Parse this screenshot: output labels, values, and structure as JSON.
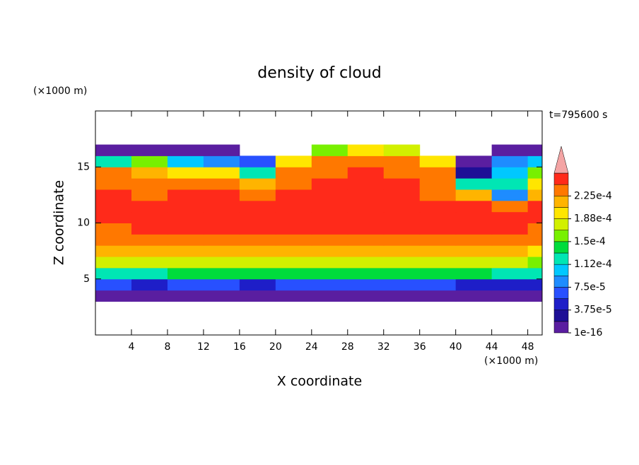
{
  "chart_data": {
    "type": "contourf",
    "title": "density of cloud",
    "x_label": "X coordinate",
    "y_label": "Z coordinate",
    "x_unit": "(×1000 m)",
    "y_unit": "(×1000 m)",
    "time_label": "t=795600 s",
    "xlim": [
      0,
      49.6
    ],
    "ylim": [
      0,
      20
    ],
    "xticks": [
      4,
      8,
      12,
      16,
      20,
      24,
      28,
      32,
      36,
      40,
      44,
      48
    ],
    "yticks": [
      5,
      10,
      15
    ],
    "x_edges": [
      0,
      4,
      8,
      12,
      16,
      20,
      24,
      28,
      32,
      36,
      40,
      44,
      48,
      49.6
    ],
    "z_edges": [
      3,
      4,
      5,
      6,
      7,
      8,
      9,
      10,
      11,
      12,
      13,
      14,
      15,
      16,
      17
    ],
    "values": [
      [
        1.5e-05,
        1.5e-05,
        1.5e-05,
        1.5e-05,
        1.5e-05,
        1.5e-05,
        1.5e-05,
        1.5e-05,
        1.5e-05,
        1.5e-05,
        1.5e-05,
        1e-05,
        1e-05
      ],
      [
        6e-05,
        5e-05,
        6e-05,
        6e-05,
        5e-05,
        6e-05,
        6e-05,
        6e-05,
        6e-05,
        6e-05,
        5e-05,
        4e-05,
        4e-05
      ],
      [
        0.00012,
        0.00012,
        0.000135,
        0.000135,
        0.000135,
        0.000135,
        0.000135,
        0.000135,
        0.000135,
        0.000135,
        0.000135,
        0.00013,
        0.00012
      ],
      [
        0.00017,
        0.00017,
        0.00017,
        0.00017,
        0.00017,
        0.00017,
        0.00017,
        0.00017,
        0.00017,
        0.00017,
        0.00017,
        0.00017,
        0.00016
      ],
      [
        0.00021,
        0.00021,
        0.00021,
        0.00021,
        0.00021,
        0.00021,
        0.00021,
        0.00021,
        0.00021,
        0.00021,
        0.00021,
        0.00021,
        0.0002
      ],
      [
        0.00023,
        0.00023,
        0.00023,
        0.00023,
        0.00023,
        0.00023,
        0.00023,
        0.00023,
        0.00023,
        0.00023,
        0.00023,
        0.00023,
        0.00023
      ],
      [
        0.00023,
        0.00025,
        0.00025,
        0.00025,
        0.00025,
        0.00025,
        0.00025,
        0.00025,
        0.00025,
        0.00025,
        0.00025,
        0.00025,
        0.00023
      ],
      [
        0.00025,
        0.00025,
        0.00025,
        0.00025,
        0.00025,
        0.00025,
        0.00025,
        0.00025,
        0.00025,
        0.00025,
        0.00025,
        0.00025,
        0.00025
      ],
      [
        0.00025,
        0.00025,
        0.00025,
        0.00025,
        0.00025,
        0.00025,
        0.00025,
        0.00025,
        0.00025,
        0.00025,
        0.00025,
        0.00023,
        0.00025
      ],
      [
        0.00025,
        0.00024,
        0.00025,
        0.00025,
        0.00024,
        0.00025,
        0.00025,
        0.00025,
        0.00025,
        0.00024,
        0.00022,
        9e-05,
        0.00021
      ],
      [
        0.00024,
        0.00023,
        0.00023,
        0.00024,
        0.00022,
        0.00024,
        0.00025,
        0.00025,
        0.00025,
        0.00024,
        0.00013,
        0.00013,
        0.0002
      ],
      [
        0.00023,
        0.00022,
        0.00019,
        0.0002,
        0.00012,
        0.00023,
        0.00024,
        0.00025,
        0.00024,
        0.00023,
        3e-05,
        0.00011,
        0.00015
      ],
      [
        0.00012,
        0.00015,
        0.00011,
        9e-05,
        6e-05,
        0.00019,
        0.00023,
        0.00024,
        0.00023,
        0.0002,
        1e-05,
        8e-05,
        0.0001
      ],
      [
        1e-05,
        1e-05,
        1e-05,
        1e-05,
        null,
        null,
        0.00015,
        0.0002,
        0.00018,
        null,
        null,
        1e-05,
        1e-05
      ]
    ],
    "levels": [
      1e-16,
      1.875e-05,
      3.75e-05,
      5.625e-05,
      7.5e-05,
      9.375e-05,
      0.0001125,
      0.00013125,
      0.00015,
      0.00016875,
      0.0001875,
      0.00020625,
      0.000225,
      0.00024375,
      0.0002625
    ],
    "colors": [
      "#5a1ea0",
      "#1e0f96",
      "#1e1ec8",
      "#2850ff",
      "#1e8cff",
      "#00c8ff",
      "#00e6b4",
      "#00dc3c",
      "#78f000",
      "#d2f000",
      "#ffe600",
      "#ffb400",
      "#ff7800",
      "#ff2a1a"
    ],
    "extend_color": "#f4a4a4",
    "cbar_ticks": [
      1e-16,
      {
        "value": 3.75e-05,
        "label": "3.75e-5"
      },
      {
        "value": 7.5e-05,
        "label": "7.5e-5"
      },
      {
        "value": 0.0001125,
        "label": "1.12e-4"
      },
      {
        "value": 0.00015,
        "label": "1.5e-4"
      },
      {
        "value": 0.0001875,
        "label": "1.88e-4"
      },
      {
        "value": 0.000225,
        "label": "2.25e-4"
      }
    ]
  }
}
